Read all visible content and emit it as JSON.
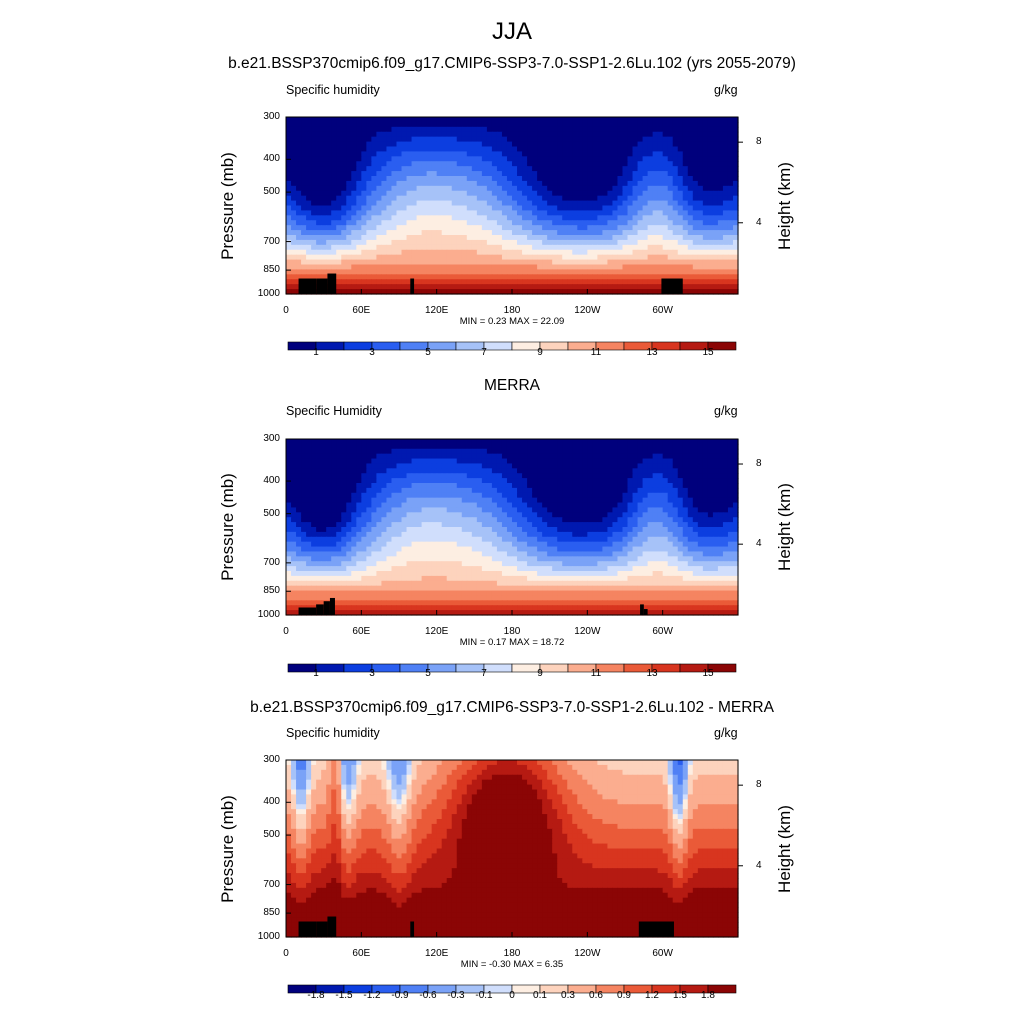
{
  "figure": {
    "title": "JJA",
    "units_label": "g/kg",
    "pressure_axis_label": "Pressure (mb)",
    "height_axis_label": "Height (km)",
    "pressure_ticks": [
      "300",
      "400",
      "500",
      "700",
      "850",
      "1000"
    ],
    "height_ticks": [
      "8",
      "4"
    ],
    "lon_ticks": [
      "0",
      "60E",
      "120E",
      "180",
      "120W",
      "60W"
    ],
    "min_label": "MIN =",
    "max_label": "MAX ="
  },
  "panels": [
    {
      "title": "b.e21.BSSP370cmip6.f09_g17.CMIP6-SSP3-7.0-SSP1-2.6Lu.102 (yrs 2055-2079)",
      "variable": "Specific humidity",
      "min": "0.23",
      "max": "22.09",
      "colorbar_labels": [
        "1",
        "3",
        "5",
        "7",
        "9",
        "11",
        "13",
        "15"
      ]
    },
    {
      "title": "MERRA",
      "variable": "Specific Humidity",
      "min": "0.17",
      "max": "18.72",
      "colorbar_labels": [
        "1",
        "3",
        "5",
        "7",
        "9",
        "11",
        "13",
        "15"
      ]
    },
    {
      "title": "b.e21.BSSP370cmip6.f09_g17.CMIP6-SSP3-7.0-SSP1-2.6Lu.102 - MERRA",
      "variable": "Specific humidity",
      "min": "-0.30",
      "max": "6.35",
      "colorbar_labels": [
        "-1.8",
        "-1.5",
        "-1.2",
        "-0.9",
        "-0.6",
        "-0.3",
        "-0.1",
        "0",
        "0.1",
        "0.3",
        "0.6",
        "0.9",
        "1.2",
        "1.5",
        "1.8"
      ]
    }
  ],
  "chart_data": [
    {
      "type": "heatmap",
      "title": "b.e21.BSSP370cmip6.f09_g17.CMIP6-SSP3-7.0-SSP1-2.6Lu.102 (yrs 2055-2079)",
      "subtitle": "Specific humidity",
      "xlabel": "",
      "ylabel": "Pressure (mb)",
      "ylabel_right": "Height (km)",
      "units": "g/kg",
      "x_ticks": [
        "0",
        "60E",
        "120E",
        "180",
        "120W",
        "60W"
      ],
      "x_range_deg": [
        0,
        360
      ],
      "y_ticks_mb": [
        300,
        400,
        500,
        700,
        850,
        1000
      ],
      "y_scale": "log",
      "y_range_mb": [
        300,
        1000
      ],
      "height_ticks_km": [
        8,
        4
      ],
      "contour_levels": [
        0,
        1,
        2,
        3,
        4,
        5,
        6,
        7,
        8,
        9,
        10,
        11,
        12,
        13,
        14,
        15,
        16
      ],
      "colorbar_labels": [
        1,
        3,
        5,
        7,
        9,
        11,
        13,
        15
      ],
      "min": 0.23,
      "max": 22.09,
      "colors": [
        "#00007d",
        "#0019b0",
        "#0c3ee0",
        "#2a5ef0",
        "#4f80f5",
        "#7aa2f7",
        "#a6c2f8",
        "#d0defc",
        "#fdeee2",
        "#fdd3bd",
        "#fbad8f",
        "#f58461",
        "#ea5a38",
        "#d8351f",
        "#b51a12",
        "#8b0505"
      ],
      "terrain_lon": [
        [
          10,
          24
        ],
        [
          24,
          33
        ],
        [
          33,
          40
        ],
        [
          99,
          102
        ],
        [
          299,
          316
        ]
      ],
      "terrain_top_mb": [
        900,
        900,
        870,
        900,
        900
      ]
    },
    {
      "type": "heatmap",
      "title": "MERRA",
      "subtitle": "Specific Humidity",
      "xlabel": "",
      "ylabel": "Pressure (mb)",
      "ylabel_right": "Height (km)",
      "units": "g/kg",
      "x_ticks": [
        "0",
        "60E",
        "120E",
        "180",
        "120W",
        "60W"
      ],
      "x_range_deg": [
        0,
        360
      ],
      "y_ticks_mb": [
        300,
        400,
        500,
        700,
        850,
        1000
      ],
      "y_scale": "log",
      "y_range_mb": [
        300,
        1000
      ],
      "height_ticks_km": [
        8,
        4
      ],
      "contour_levels": [
        0,
        1,
        2,
        3,
        4,
        5,
        6,
        7,
        8,
        9,
        10,
        11,
        12,
        13,
        14,
        15,
        16
      ],
      "colorbar_labels": [
        1,
        3,
        5,
        7,
        9,
        11,
        13,
        15
      ],
      "min": 0.17,
      "max": 18.72,
      "colors": [
        "#00007d",
        "#0019b0",
        "#0c3ee0",
        "#2a5ef0",
        "#4f80f5",
        "#7aa2f7",
        "#a6c2f8",
        "#d0defc",
        "#fdeee2",
        "#fdd3bd",
        "#fbad8f",
        "#f58461",
        "#ea5a38",
        "#d8351f",
        "#b51a12",
        "#8b0505"
      ],
      "terrain_lon": [
        [
          10,
          24
        ],
        [
          24,
          30
        ],
        [
          30,
          35
        ],
        [
          35,
          39
        ],
        [
          282,
          285
        ],
        [
          285,
          288
        ]
      ],
      "terrain_top_mb": [
        950,
        930,
        910,
        890,
        930,
        960
      ]
    },
    {
      "type": "heatmap",
      "title": "b.e21.BSSP370cmip6.f09_g17.CMIP6-SSP3-7.0-SSP1-2.6Lu.102 - MERRA",
      "subtitle": "Specific humidity",
      "xlabel": "",
      "ylabel": "Pressure (mb)",
      "ylabel_right": "Height (km)",
      "units": "g/kg",
      "x_ticks": [
        "0",
        "60E",
        "120E",
        "180",
        "120W",
        "60W"
      ],
      "x_range_deg": [
        0,
        360
      ],
      "y_ticks_mb": [
        300,
        400,
        500,
        700,
        850,
        1000
      ],
      "y_scale": "log",
      "y_range_mb": [
        300,
        1000
      ],
      "height_ticks_km": [
        8,
        4
      ],
      "contour_levels": [
        -2.1,
        -1.8,
        -1.5,
        -1.2,
        -0.9,
        -0.6,
        -0.3,
        -0.1,
        0,
        0.1,
        0.3,
        0.6,
        0.9,
        1.2,
        1.5,
        1.8,
        2.1
      ],
      "colorbar_labels": [
        -1.8,
        -1.5,
        -1.2,
        -0.9,
        -0.6,
        -0.3,
        -0.1,
        0,
        0.1,
        0.3,
        0.6,
        0.9,
        1.2,
        1.5,
        1.8
      ],
      "min": -0.3,
      "max": 6.35,
      "colors": [
        "#00007d",
        "#0019b0",
        "#0c3ee0",
        "#2a5ef0",
        "#4f80f5",
        "#7aa2f7",
        "#a6c2f8",
        "#d0defc",
        "#fdeee2",
        "#fdd3bd",
        "#fbad8f",
        "#f58461",
        "#ea5a38",
        "#d8351f",
        "#b51a12",
        "#8b0505"
      ],
      "terrain_lon": [
        [
          10,
          24
        ],
        [
          24,
          33
        ],
        [
          33,
          40
        ],
        [
          99,
          102
        ],
        [
          281,
          309
        ]
      ],
      "terrain_top_mb": [
        900,
        900,
        870,
        900,
        900
      ]
    }
  ]
}
